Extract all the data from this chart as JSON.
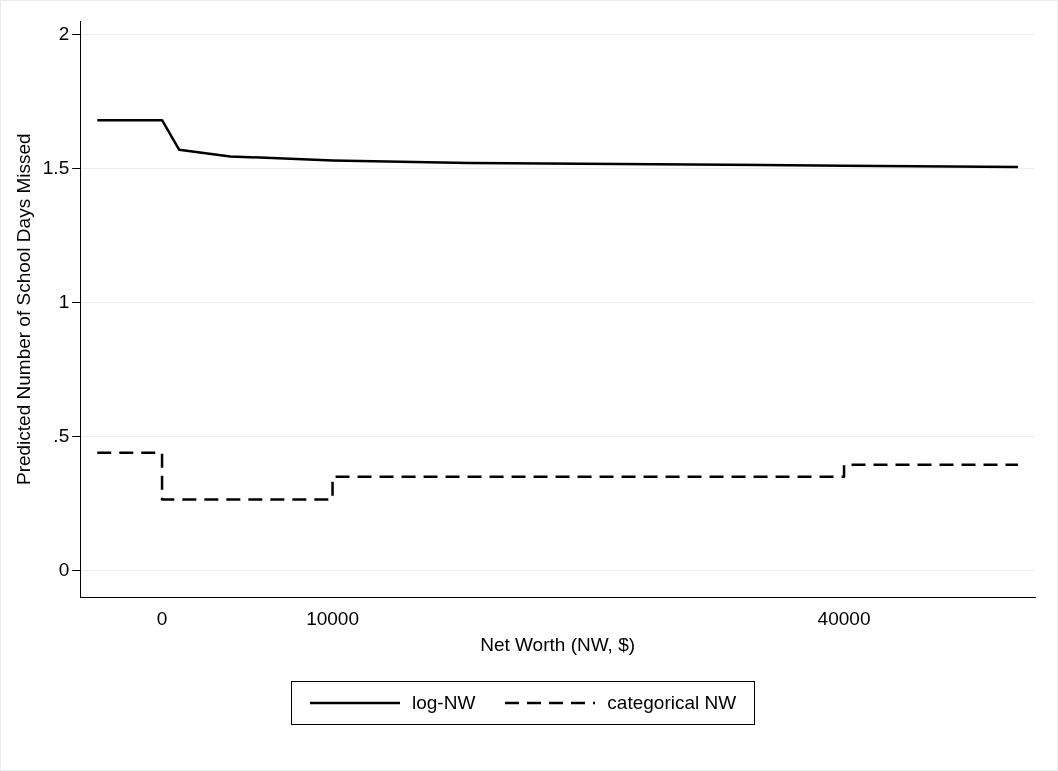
{
  "chart_data": {
    "type": "line",
    "xlabel": "Net Worth (NW, $)",
    "ylabel": "Predicted Number of School Days Missed",
    "xlim": [
      -4800,
      51200
    ],
    "xticks": [
      0,
      10000,
      40000
    ],
    "ylim": [
      -0.1,
      2.05
    ],
    "yticks": [
      0,
      {
        "value": 0.5,
        "label": ".5"
      },
      1,
      1.5,
      2
    ],
    "grid": "y",
    "legend": "bottom",
    "marker": "none",
    "series": [
      {
        "name": "log-NW",
        "type": "line",
        "color": "#000000",
        "line_style": "solid",
        "x": [
          -3800,
          0,
          1000,
          4000,
          10000,
          18000,
          31000,
          40000,
          50200
        ],
        "values": [
          1.68,
          1.68,
          1.57,
          1.545,
          1.53,
          1.52,
          1.515,
          1.51,
          1.505
        ]
      },
      {
        "name": "categorical NW",
        "type": "step",
        "color": "#000000",
        "line_style": "dashed",
        "x": [
          -3800,
          0,
          10000,
          40000,
          50200
        ],
        "values": [
          0.44,
          0.265,
          0.35,
          0.395,
          0.395
        ]
      }
    ]
  }
}
